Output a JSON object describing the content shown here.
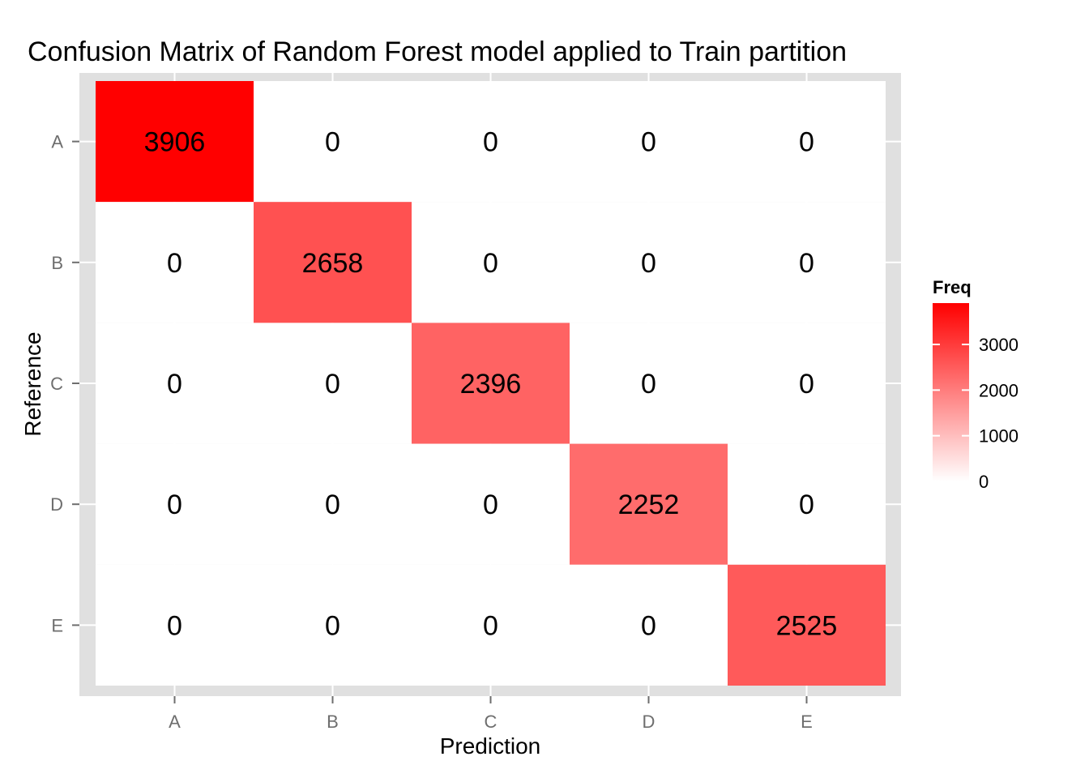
{
  "chart_data": {
    "type": "heatmap",
    "title": "Confusion Matrix of Random Forest model applied to Train partition",
    "xlabel": "Prediction",
    "ylabel": "Reference",
    "x_categories": [
      "A",
      "B",
      "C",
      "D",
      "E"
    ],
    "y_categories": [
      "A",
      "B",
      "C",
      "D",
      "E"
    ],
    "values": [
      [
        3906,
        0,
        0,
        0,
        0
      ],
      [
        0,
        2658,
        0,
        0,
        0
      ],
      [
        0,
        0,
        2396,
        0,
        0
      ],
      [
        0,
        0,
        0,
        2252,
        0
      ],
      [
        0,
        0,
        0,
        0,
        2525
      ]
    ],
    "legend": {
      "title": "Freq",
      "ticks": [
        0,
        1000,
        2000,
        3000
      ],
      "range": [
        0,
        3906
      ],
      "low_color": "#ffffff",
      "high_color": "#ff0000",
      "placement": "right"
    },
    "panel_background": "#e0e0e0",
    "grid": true
  }
}
